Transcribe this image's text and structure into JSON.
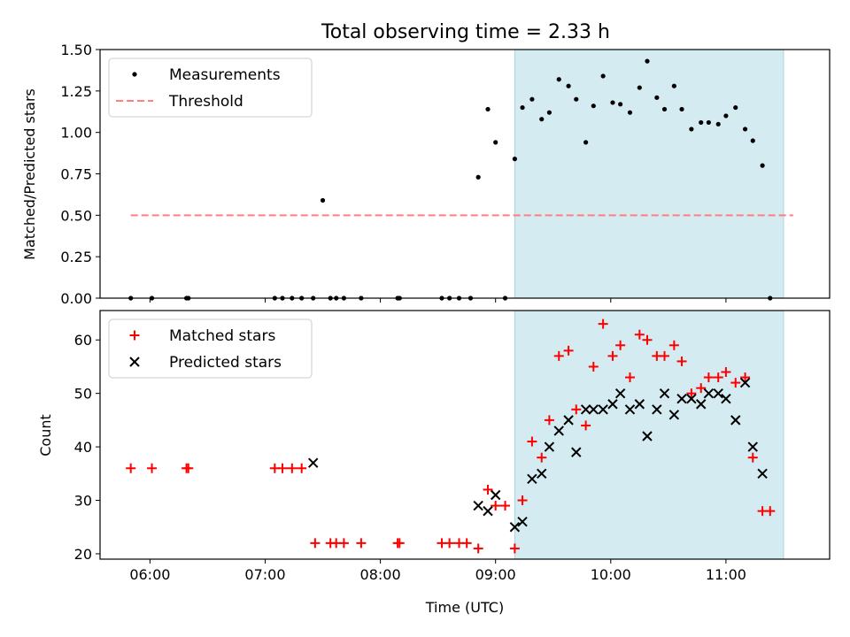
{
  "chart_data": [
    {
      "type": "scatter",
      "title": "Total observing time = 2.33 h",
      "xlabel": "",
      "ylabel": "Matched/Predicted stars",
      "ylim": [
        0,
        1.5
      ],
      "yticks": [
        "0.00",
        "0.25",
        "0.50",
        "0.75",
        "1.00",
        "1.25",
        "1.50"
      ],
      "xlim": [
        "05:34",
        "11:54"
      ],
      "shaded_region": [
        "09:10",
        "11:30"
      ],
      "legend_position": "top-left",
      "series": [
        {
          "name": "Measurements",
          "style": "dot",
          "color": "#000000",
          "points": [
            [
              "05:50",
              0
            ],
            [
              "06:01",
              0
            ],
            [
              "06:19",
              0
            ],
            [
              "06:20",
              0
            ],
            [
              "07:05",
              0
            ],
            [
              "07:09",
              0
            ],
            [
              "07:14",
              0
            ],
            [
              "07:19",
              0
            ],
            [
              "07:25",
              0
            ],
            [
              "07:30",
              0.59
            ],
            [
              "07:34",
              0
            ],
            [
              "07:37",
              0
            ],
            [
              "07:41",
              0
            ],
            [
              "07:50",
              0
            ],
            [
              "08:09",
              0
            ],
            [
              "08:10",
              0
            ],
            [
              "08:32",
              0
            ],
            [
              "08:36",
              0
            ],
            [
              "08:41",
              0
            ],
            [
              "08:47",
              0
            ],
            [
              "08:51",
              0.73
            ],
            [
              "08:56",
              1.14
            ],
            [
              "09:00",
              0.94
            ],
            [
              "09:05",
              0
            ],
            [
              "09:10",
              0.84
            ],
            [
              "09:14",
              1.15
            ],
            [
              "09:19",
              1.2
            ],
            [
              "09:24",
              1.08
            ],
            [
              "09:28",
              1.12
            ],
            [
              "09:33",
              1.32
            ],
            [
              "09:38",
              1.28
            ],
            [
              "09:42",
              1.2
            ],
            [
              "09:47",
              0.94
            ],
            [
              "09:51",
              1.16
            ],
            [
              "09:56",
              1.34
            ],
            [
              "10:01",
              1.18
            ],
            [
              "10:05",
              1.17
            ],
            [
              "10:10",
              1.12
            ],
            [
              "10:15",
              1.27
            ],
            [
              "10:19",
              1.43
            ],
            [
              "10:24",
              1.21
            ],
            [
              "10:28",
              1.14
            ],
            [
              "10:33",
              1.28
            ],
            [
              "10:37",
              1.14
            ],
            [
              "10:42",
              1.02
            ],
            [
              "10:47",
              1.06
            ],
            [
              "10:51",
              1.06
            ],
            [
              "10:56",
              1.05
            ],
            [
              "11:00",
              1.1
            ],
            [
              "11:05",
              1.15
            ],
            [
              "11:10",
              1.02
            ],
            [
              "11:14",
              0.95
            ],
            [
              "11:19",
              0.8
            ],
            [
              "11:23",
              0
            ]
          ]
        },
        {
          "name": "Threshold",
          "style": "dashed",
          "color": "#ff7f7f",
          "points": [
            [
              "05:50",
              0.5
            ],
            [
              "11:35",
              0.5
            ]
          ]
        }
      ]
    },
    {
      "type": "scatter",
      "title": "",
      "xlabel": "Time (UTC)",
      "ylabel": "Count",
      "ylim": [
        19,
        65.5
      ],
      "yticks": [
        "20",
        "30",
        "40",
        "50",
        "60"
      ],
      "xlim": [
        "05:34",
        "11:54"
      ],
      "xticks": [
        "06:00",
        "07:00",
        "08:00",
        "09:00",
        "10:00",
        "11:00"
      ],
      "shaded_region": [
        "09:10",
        "11:30"
      ],
      "legend_position": "top-left",
      "series": [
        {
          "name": "Matched stars",
          "style": "plus",
          "color": "#ff0000",
          "points": [
            [
              "05:50",
              36
            ],
            [
              "06:01",
              36
            ],
            [
              "06:19",
              36
            ],
            [
              "06:20",
              36
            ],
            [
              "07:05",
              36
            ],
            [
              "07:09",
              36
            ],
            [
              "07:14",
              36
            ],
            [
              "07:19",
              36
            ],
            [
              "07:26",
              22
            ],
            [
              "07:34",
              22
            ],
            [
              "07:37",
              22
            ],
            [
              "07:41",
              22
            ],
            [
              "07:50",
              22
            ],
            [
              "08:09",
              22
            ],
            [
              "08:10",
              22
            ],
            [
              "08:32",
              22
            ],
            [
              "08:36",
              22
            ],
            [
              "08:41",
              22
            ],
            [
              "08:45",
              22
            ],
            [
              "08:51",
              21
            ],
            [
              "08:56",
              32
            ],
            [
              "09:00",
              29
            ],
            [
              "09:05",
              29
            ],
            [
              "09:10",
              21
            ],
            [
              "09:14",
              30
            ],
            [
              "09:19",
              41
            ],
            [
              "09:24",
              38
            ],
            [
              "09:28",
              45
            ],
            [
              "09:33",
              57
            ],
            [
              "09:38",
              58
            ],
            [
              "09:42",
              47
            ],
            [
              "09:47",
              44
            ],
            [
              "09:51",
              55
            ],
            [
              "09:56",
              63
            ],
            [
              "10:01",
              57
            ],
            [
              "10:05",
              59
            ],
            [
              "10:10",
              53
            ],
            [
              "10:15",
              61
            ],
            [
              "10:19",
              60
            ],
            [
              "10:24",
              57
            ],
            [
              "10:28",
              57
            ],
            [
              "10:33",
              59
            ],
            [
              "10:37",
              56
            ],
            [
              "10:42",
              50
            ],
            [
              "10:47",
              51
            ],
            [
              "10:51",
              53
            ],
            [
              "10:56",
              53
            ],
            [
              "11:00",
              54
            ],
            [
              "11:05",
              52
            ],
            [
              "11:10",
              53
            ],
            [
              "11:14",
              38
            ],
            [
              "11:19",
              28
            ],
            [
              "11:23",
              28
            ]
          ]
        },
        {
          "name": "Predicted stars",
          "style": "x",
          "color": "#000000",
          "points": [
            [
              "07:25",
              37
            ],
            [
              "08:51",
              29
            ],
            [
              "08:56",
              28
            ],
            [
              "09:00",
              31
            ],
            [
              "09:10",
              25
            ],
            [
              "09:14",
              26
            ],
            [
              "09:19",
              34
            ],
            [
              "09:24",
              35
            ],
            [
              "09:28",
              40
            ],
            [
              "09:33",
              43
            ],
            [
              "09:38",
              45
            ],
            [
              "09:42",
              39
            ],
            [
              "09:47",
              47
            ],
            [
              "09:51",
              47
            ],
            [
              "09:56",
              47
            ],
            [
              "10:01",
              48
            ],
            [
              "10:05",
              50
            ],
            [
              "10:10",
              47
            ],
            [
              "10:15",
              48
            ],
            [
              "10:19",
              42
            ],
            [
              "10:24",
              47
            ],
            [
              "10:28",
              50
            ],
            [
              "10:33",
              46
            ],
            [
              "10:37",
              49
            ],
            [
              "10:42",
              49
            ],
            [
              "10:47",
              48
            ],
            [
              "10:51",
              50
            ],
            [
              "10:56",
              50
            ],
            [
              "11:00",
              49
            ],
            [
              "11:05",
              45
            ],
            [
              "11:10",
              52
            ],
            [
              "11:14",
              40
            ],
            [
              "11:19",
              35
            ]
          ]
        }
      ]
    }
  ]
}
